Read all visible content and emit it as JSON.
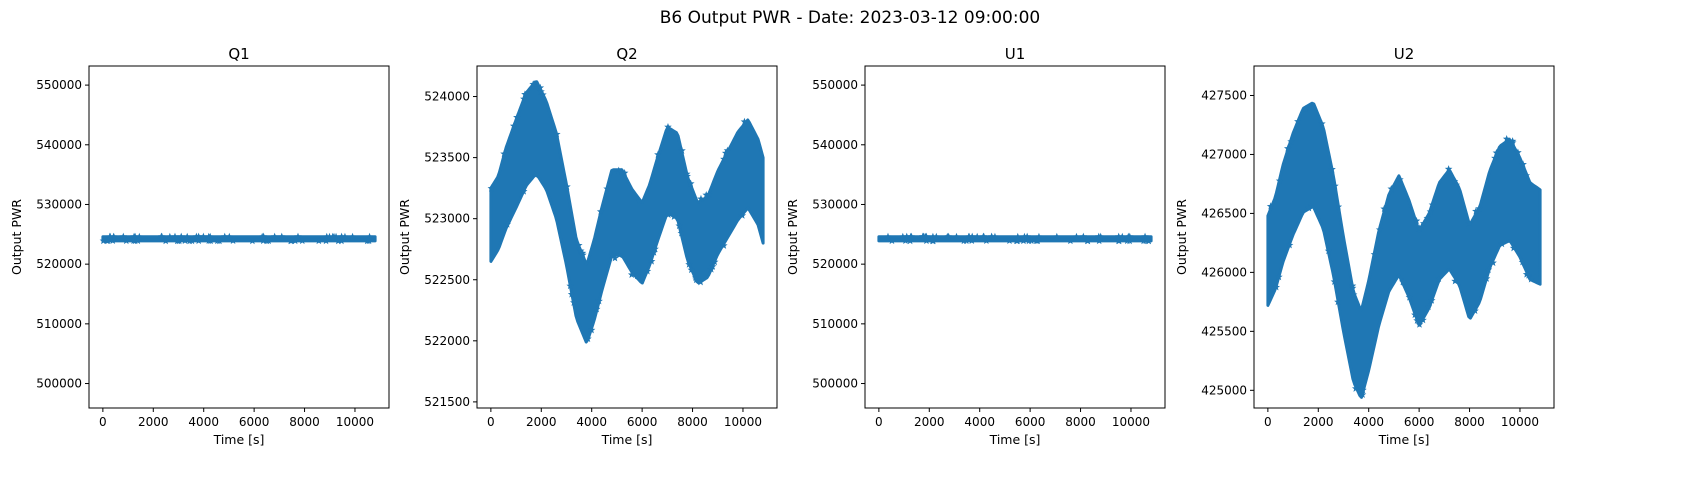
{
  "figure": {
    "title": "B6 Output PWR - Date: 2023-03-12 09:00:00"
  },
  "colors": {
    "series": "#1f77b4",
    "axes": "#000000",
    "background": "#ffffff"
  },
  "chart_data": [
    {
      "type": "scatter",
      "title": "Q1",
      "xlabel": "Time [s]",
      "ylabel": "Output PWR",
      "marker": "star",
      "xlim": [
        -550,
        11350
      ],
      "ylim": [
        495900,
        553200
      ],
      "xticks": [
        0,
        2000,
        4000,
        6000,
        8000,
        10000
      ],
      "xtick_labels": [
        "0",
        "2000",
        "4000",
        "6000",
        "8000",
        "10000"
      ],
      "yticks": [
        500000,
        510000,
        520000,
        530000,
        540000,
        550000
      ],
      "ytick_labels": [
        "500000",
        "510000",
        "520000",
        "530000",
        "540000",
        "550000"
      ],
      "band": {
        "x": [
          0,
          10800
        ],
        "center": [
          524250,
          524250
        ],
        "half_width": [
          350,
          350
        ]
      }
    },
    {
      "type": "scatter",
      "title": "Q2",
      "xlabel": "Time [s]",
      "ylabel": "Output PWR",
      "marker": "star",
      "xlim": [
        -550,
        11350
      ],
      "ylim": [
        521450,
        524250
      ],
      "xticks": [
        0,
        2000,
        4000,
        6000,
        8000,
        10000
      ],
      "xtick_labels": [
        "0",
        "2000",
        "4000",
        "6000",
        "8000",
        "10000"
      ],
      "yticks": [
        521500,
        522000,
        522500,
        523000,
        523500,
        524000
      ],
      "ytick_labels": [
        "521500",
        "522000",
        "522500",
        "523000",
        "523500",
        "524000"
      ],
      "band": {
        "x": [
          0,
          300,
          600,
          1000,
          1400,
          1800,
          2200,
          2600,
          3000,
          3400,
          3800,
          4100,
          4400,
          4800,
          5200,
          5600,
          6000,
          6300,
          6600,
          7000,
          7400,
          7800,
          8200,
          8600,
          9000,
          9400,
          9800,
          10200,
          10600,
          10800
        ],
        "center": [
          522950,
          523050,
          523250,
          523450,
          523650,
          523750,
          523600,
          523350,
          522950,
          522500,
          522300,
          522500,
          522750,
          523050,
          523050,
          522900,
          522800,
          522950,
          523150,
          523400,
          523350,
          523000,
          522800,
          522850,
          523050,
          523200,
          523350,
          523450,
          523300,
          523150
        ],
        "half_width": [
          300,
          300,
          330,
          360,
          380,
          380,
          360,
          350,
          330,
          320,
          320,
          330,
          340,
          350,
          350,
          340,
          330,
          330,
          340,
          350,
          350,
          340,
          330,
          330,
          340,
          350,
          360,
          360,
          350,
          350
        ]
      }
    },
    {
      "type": "scatter",
      "title": "U1",
      "xlabel": "Time [s]",
      "ylabel": "Output PWR",
      "marker": "star",
      "xlim": [
        -550,
        11350
      ],
      "ylim": [
        495900,
        553200
      ],
      "xticks": [
        0,
        2000,
        4000,
        6000,
        8000,
        10000
      ],
      "xtick_labels": [
        "0",
        "2000",
        "4000",
        "6000",
        "8000",
        "10000"
      ],
      "yticks": [
        500000,
        510000,
        520000,
        530000,
        540000,
        550000
      ],
      "ytick_labels": [
        "500000",
        "510000",
        "520000",
        "530000",
        "540000",
        "550000"
      ],
      "band": {
        "x": [
          0,
          10800
        ],
        "center": [
          524250,
          524250
        ],
        "half_width": [
          350,
          350
        ]
      }
    },
    {
      "type": "scatter",
      "title": "U2",
      "xlabel": "Time [s]",
      "ylabel": "Output PWR",
      "marker": "star",
      "xlim": [
        -550,
        11350
      ],
      "ylim": [
        424850,
        427750
      ],
      "xticks": [
        0,
        2000,
        4000,
        6000,
        8000,
        10000
      ],
      "xtick_labels": [
        "0",
        "2000",
        "4000",
        "6000",
        "8000",
        "10000"
      ],
      "yticks": [
        425000,
        425500,
        426000,
        426500,
        427000,
        427500
      ],
      "ytick_labels": [
        "425000",
        "425500",
        "426000",
        "426500",
        "427000",
        "427500"
      ],
      "band": {
        "x": [
          0,
          300,
          600,
          1000,
          1400,
          1800,
          2200,
          2600,
          3000,
          3400,
          3700,
          4000,
          4400,
          4800,
          5200,
          5600,
          6000,
          6400,
          6800,
          7200,
          7600,
          8000,
          8400,
          8800,
          9200,
          9600,
          10000,
          10400,
          10800
        ],
        "center": [
          426100,
          426250,
          426500,
          426750,
          426950,
          427000,
          426800,
          426400,
          425900,
          425450,
          425300,
          425550,
          425950,
          426250,
          426400,
          426200,
          425950,
          426100,
          426350,
          426450,
          426300,
          426000,
          426150,
          426450,
          426650,
          426700,
          426550,
          426350,
          426300
        ],
        "half_width": [
          380,
          390,
          410,
          430,
          440,
          440,
          430,
          420,
          400,
          380,
          370,
          380,
          400,
          410,
          420,
          410,
          400,
          400,
          410,
          420,
          410,
          400,
          400,
          410,
          420,
          430,
          420,
          410,
          400
        ]
      }
    }
  ]
}
